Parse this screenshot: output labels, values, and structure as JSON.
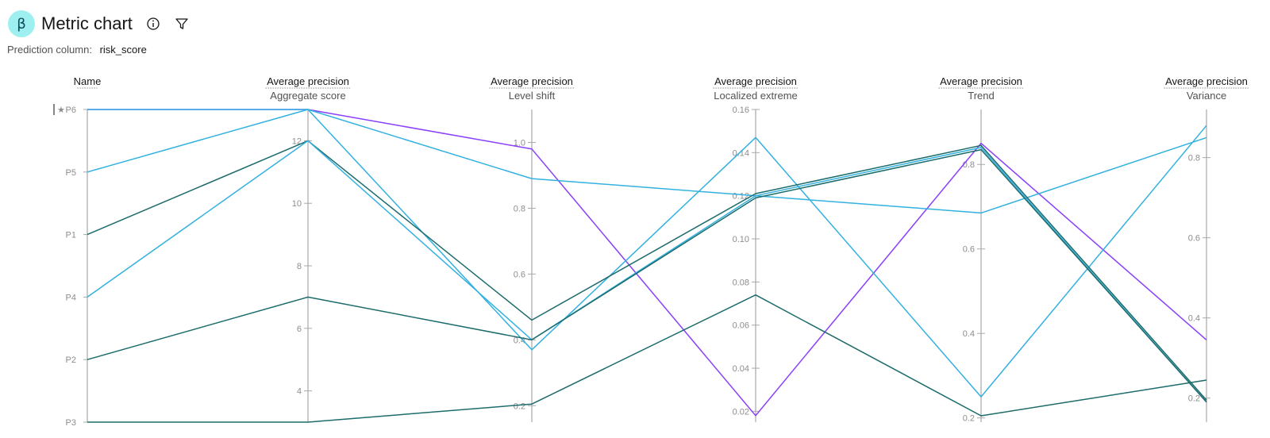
{
  "header": {
    "badge": "β",
    "title": "Metric chart",
    "info_icon": "info-icon",
    "filter_icon": "filter-icon"
  },
  "subheader": {
    "label": "Prediction column:",
    "value": "risk_score"
  },
  "chart_data": {
    "type": "parallel-coordinates",
    "axes": [
      {
        "key": "name",
        "title": "Name",
        "subtitle": "",
        "kind": "category",
        "categories": [
          "P6",
          "P5",
          "P1",
          "P4",
          "P2",
          "P3"
        ],
        "pinned": "P6"
      },
      {
        "key": "aggregate",
        "title": "Average precision",
        "subtitle": "Aggregate score",
        "kind": "linear",
        "range": [
          3,
          13
        ],
        "ticks": [
          4,
          6,
          8,
          10,
          12
        ]
      },
      {
        "key": "level_shift",
        "title": "Average precision",
        "subtitle": "Level shift",
        "kind": "linear",
        "range": [
          0.15,
          1.1
        ],
        "ticks": [
          0.2,
          0.4,
          0.6,
          0.8,
          1.0
        ],
        "tick_labels": [
          "0.2",
          "0.4",
          "0.6",
          "0.8",
          "1.0"
        ]
      },
      {
        "key": "localized_extreme",
        "title": "Average precision",
        "subtitle": "Localized extreme",
        "kind": "linear",
        "range": [
          0.015,
          0.16
        ],
        "ticks": [
          0.02,
          0.04,
          0.06,
          0.08,
          0.1,
          0.12,
          0.14,
          0.16
        ],
        "tick_labels": [
          "0.02",
          "0.04",
          "0.06",
          "0.08",
          "0.10",
          "0.12",
          "0.14",
          "0.16"
        ]
      },
      {
        "key": "trend",
        "title": "Average precision",
        "subtitle": "Trend",
        "kind": "linear",
        "range": [
          0.19,
          0.93
        ],
        "ticks": [
          0.2,
          0.4,
          0.6,
          0.8
        ],
        "tick_labels": [
          "0.2",
          "0.4",
          "0.6",
          "0.8"
        ]
      },
      {
        "key": "variance",
        "title": "Average precision",
        "subtitle": "Variance",
        "kind": "linear",
        "range": [
          0.14,
          0.92
        ],
        "ticks": [
          0.2,
          0.4,
          0.6,
          0.8
        ],
        "tick_labels": [
          "0.2",
          "0.4",
          "0.6",
          "0.8"
        ]
      }
    ],
    "series": [
      {
        "color": "#8a3ffc",
        "values": {
          "name": "P6",
          "aggregate": 13,
          "level_shift": 0.98,
          "localized_extreme": 0.018,
          "trend": 0.85,
          "variance": 0.345
        }
      },
      {
        "color": "#33b1e0",
        "values": {
          "name": "P6",
          "aggregate": 13,
          "level_shift": 0.89,
          "localized_extreme": 0.12,
          "trend": 0.685,
          "variance": 0.85
        }
      },
      {
        "color": "#33b1e0",
        "values": {
          "name": "P5",
          "aggregate": 13,
          "level_shift": 0.37,
          "localized_extreme": 0.147,
          "trend": 0.25,
          "variance": 0.88
        }
      },
      {
        "color": "#1d6b6b",
        "values": {
          "name": "P1",
          "aggregate": 12,
          "level_shift": 0.46,
          "localized_extreme": 0.121,
          "trend": 0.845,
          "variance": 0.195
        }
      },
      {
        "color": "#33b1e0",
        "values": {
          "name": "P4",
          "aggregate": 12,
          "level_shift": 0.4,
          "localized_extreme": 0.12,
          "trend": 0.84,
          "variance": 0.19
        }
      },
      {
        "color": "#1d6b6b",
        "values": {
          "name": "P2",
          "aggregate": 7,
          "level_shift": 0.4,
          "localized_extreme": 0.119,
          "trend": 0.835,
          "variance": 0.19
        }
      },
      {
        "color": "#1d6b6b",
        "values": {
          "name": "P3",
          "aggregate": 3,
          "level_shift": 0.205,
          "localized_extreme": 0.074,
          "trend": 0.205,
          "variance": 0.245
        }
      }
    ]
  }
}
